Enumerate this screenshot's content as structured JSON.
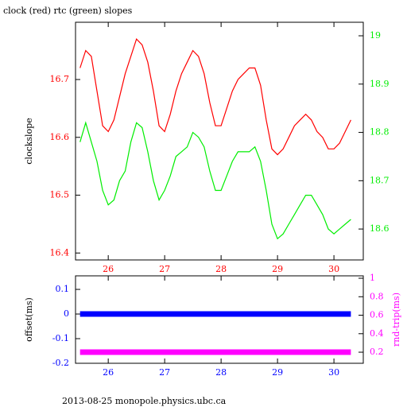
{
  "chart_data": [
    {
      "type": "line",
      "title": "clock (red) rtc (green) slopes",
      "ylabel": "clockslope",
      "x": [
        25.5,
        25.6,
        25.7,
        25.8,
        25.9,
        26.0,
        26.1,
        26.2,
        26.3,
        26.4,
        26.5,
        26.6,
        26.7,
        26.8,
        26.9,
        27.0,
        27.1,
        27.2,
        27.3,
        27.4,
        27.5,
        27.6,
        27.7,
        27.8,
        27.9,
        28.0,
        28.1,
        28.2,
        28.3,
        28.4,
        28.5,
        28.6,
        28.7,
        28.8,
        28.9,
        29.0,
        29.1,
        29.2,
        29.3,
        29.4,
        29.5,
        29.6,
        29.7,
        29.8,
        29.9,
        30.0,
        30.1,
        30.2,
        30.3
      ],
      "series": [
        {
          "name": "clock",
          "color": "#ff0000",
          "values": [
            16.72,
            16.75,
            16.74,
            16.68,
            16.62,
            16.61,
            16.63,
            16.67,
            16.71,
            16.74,
            16.77,
            16.76,
            16.73,
            16.68,
            16.62,
            16.61,
            16.64,
            16.68,
            16.71,
            16.73,
            16.75,
            16.74,
            16.71,
            16.66,
            16.62,
            16.62,
            16.65,
            16.68,
            16.7,
            16.71,
            16.72,
            16.72,
            16.69,
            16.63,
            16.58,
            16.57,
            16.58,
            16.6,
            16.62,
            16.63,
            16.64,
            16.63,
            16.61,
            16.6,
            16.58,
            16.58,
            16.59,
            16.61,
            16.63
          ]
        },
        {
          "name": "rtc",
          "color": "#00ee00",
          "axis": "y2",
          "values": [
            18.78,
            18.82,
            18.78,
            18.74,
            18.68,
            18.65,
            18.66,
            18.7,
            18.72,
            18.78,
            18.82,
            18.81,
            18.76,
            18.7,
            18.66,
            18.68,
            18.71,
            18.75,
            18.76,
            18.77,
            18.8,
            18.79,
            18.77,
            18.72,
            18.68,
            18.68,
            18.71,
            18.74,
            18.76,
            18.76,
            18.76,
            18.77,
            18.74,
            18.68,
            18.61,
            18.58,
            18.59,
            18.61,
            18.63,
            18.65,
            18.67,
            18.67,
            18.65,
            18.63,
            18.6,
            18.59,
            18.6,
            18.61,
            18.62
          ]
        }
      ],
      "xlim": [
        25.42,
        30.52
      ],
      "xticks": [
        26,
        27,
        28,
        29,
        30
      ],
      "ylim": [
        16.388,
        16.799
      ],
      "yticks": [
        16.4,
        16.5,
        16.6,
        16.7
      ],
      "y2lim": [
        18.536,
        19.028
      ],
      "y2ticks": [
        18.6,
        18.7,
        18.8,
        18.9,
        19
      ]
    },
    {
      "type": "line",
      "ylabel": "offset(ms)",
      "y2label": "rnd-trip(ms)",
      "x": [
        25.5,
        26.0,
        26.5,
        27.0,
        27.5,
        28.0,
        28.5,
        29.0,
        29.5,
        30.0,
        30.3
      ],
      "series": [
        {
          "name": "offset",
          "color": "#0000ff",
          "values": [
            0,
            0,
            0,
            0,
            0,
            0,
            0,
            0,
            0,
            0,
            0
          ]
        },
        {
          "name": "rnd-trip",
          "color": "#ff00ff",
          "axis": "y2",
          "values": [
            0.2,
            0.2,
            0.2,
            0.2,
            0.2,
            0.2,
            0.2,
            0.2,
            0.2,
            0.2,
            0.2
          ]
        }
      ],
      "xlim": [
        25.42,
        30.52
      ],
      "xticks": [
        26,
        27,
        28,
        29,
        30
      ],
      "ylim": [
        -0.2,
        0.155
      ],
      "yticks": [
        0.1,
        0,
        -0.1,
        -0.2
      ],
      "y2lim": [
        0.08,
        1.026
      ],
      "y2ticks": [
        0.2,
        0.4,
        0.6,
        0.8,
        1
      ]
    }
  ],
  "footer": "2013-08-25 monopole.physics.ubc.ca"
}
